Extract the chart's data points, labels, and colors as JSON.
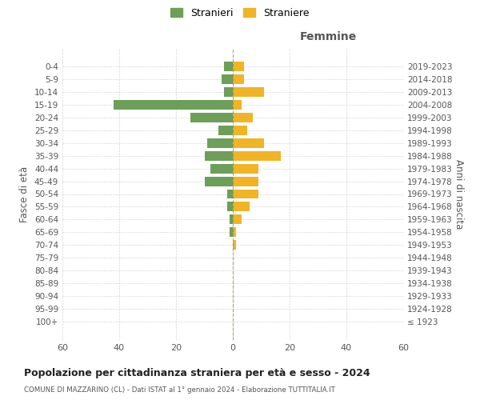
{
  "age_groups": [
    "100+",
    "95-99",
    "90-94",
    "85-89",
    "80-84",
    "75-79",
    "70-74",
    "65-69",
    "60-64",
    "55-59",
    "50-54",
    "45-49",
    "40-44",
    "35-39",
    "30-34",
    "25-29",
    "20-24",
    "15-19",
    "10-14",
    "5-9",
    "0-4"
  ],
  "birth_years": [
    "≤ 1923",
    "1924-1928",
    "1929-1933",
    "1934-1938",
    "1939-1943",
    "1944-1948",
    "1949-1953",
    "1954-1958",
    "1959-1963",
    "1964-1968",
    "1969-1973",
    "1974-1978",
    "1979-1983",
    "1984-1988",
    "1989-1993",
    "1994-1998",
    "1999-2003",
    "2004-2008",
    "2009-2013",
    "2014-2018",
    "2019-2023"
  ],
  "males": [
    0,
    0,
    0,
    0,
    0,
    0,
    0,
    1,
    1,
    2,
    2,
    10,
    8,
    10,
    9,
    5,
    15,
    42,
    3,
    4,
    3
  ],
  "females": [
    0,
    0,
    0,
    0,
    0,
    0,
    1,
    1,
    3,
    6,
    9,
    9,
    9,
    17,
    11,
    5,
    7,
    3,
    11,
    4,
    4
  ],
  "male_color": "#6d9e5a",
  "female_color": "#f0b429",
  "grid_color": "#cccccc",
  "title": "Popolazione per cittadinanza straniera per età e sesso - 2024",
  "subtitle": "COMUNE DI MAZZARINO (CL) - Dati ISTAT al 1° gennaio 2024 - Elaborazione TUTTITALIA.IT",
  "right_label": "Femmine",
  "ylabel": "Fasce di età",
  "right_ylabel": "Anni di nascita",
  "legend_male": "Stranieri",
  "legend_female": "Straniere",
  "xlim": 60
}
